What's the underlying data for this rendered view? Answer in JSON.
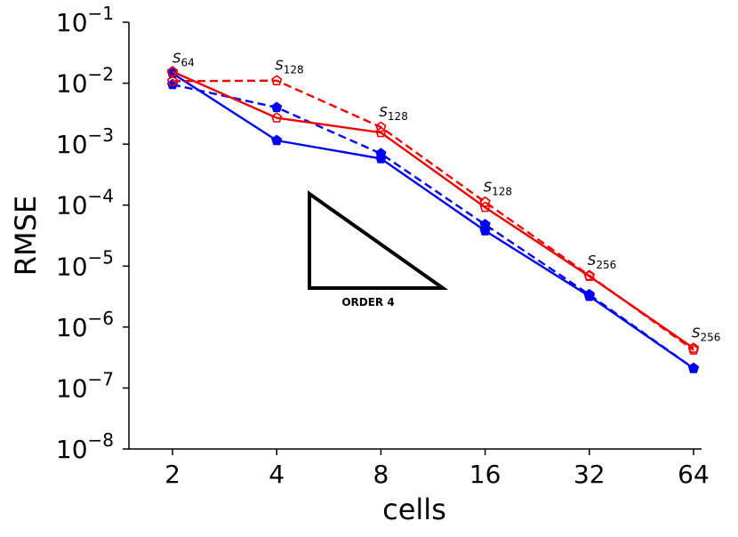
{
  "chart_data": {
    "type": "line",
    "xlabel": "cells",
    "ylabel": "RMSE",
    "yscale": "log",
    "ylim": [
      1e-08,
      0.1
    ],
    "categories": [
      "2",
      "4",
      "8",
      "16",
      "32",
      "64"
    ],
    "x": [
      2,
      4,
      8,
      16,
      32,
      64
    ],
    "y_tick_exponents": [
      "−8",
      "−7",
      "−6",
      "−5",
      "−4",
      "−3",
      "−2",
      "−1"
    ],
    "y_tick_base": "10",
    "series": [
      {
        "name": "blue solid (filled)",
        "color": "#0000ee",
        "dash": false,
        "filled": true,
        "values": [
          0.0145,
          0.00115,
          0.00058,
          3.8e-05,
          3.2e-06,
          2.1e-07
        ]
      },
      {
        "name": "blue dashed (filled)",
        "color": "#0000ee",
        "dash": true,
        "filled": true,
        "values": [
          0.0095,
          0.004,
          0.0007,
          4.8e-05,
          3.4e-06,
          2.1e-07
        ]
      },
      {
        "name": "red solid (open)",
        "color": "#ee0000",
        "dash": false,
        "filled": false,
        "values": [
          0.0155,
          0.0027,
          0.00155,
          9.2e-05,
          6.8e-06,
          4.5e-07
        ]
      },
      {
        "name": "red dashed (open)",
        "color": "#ee0000",
        "dash": true,
        "filled": false,
        "values": [
          0.0108,
          0.011,
          0.0019,
          0.000112,
          7e-06,
          4.2e-07
        ]
      }
    ],
    "point_labels": [
      {
        "base": "S",
        "sub": "64",
        "x": 2,
        "y": 0.0145
      },
      {
        "base": "S",
        "sub": "128",
        "x": 4,
        "y": 0.011
      },
      {
        "base": "S",
        "sub": "128",
        "x": 8,
        "y": 0.0019
      },
      {
        "base": "S",
        "sub": "128",
        "x": 16,
        "y": 0.000112
      },
      {
        "base": "S",
        "sub": "256",
        "x": 32,
        "y": 7e-06
      },
      {
        "base": "S",
        "sub": "256",
        "x": 64,
        "y": 4.5e-07
      }
    ],
    "annotation": {
      "text": "ORDER 4"
    }
  }
}
